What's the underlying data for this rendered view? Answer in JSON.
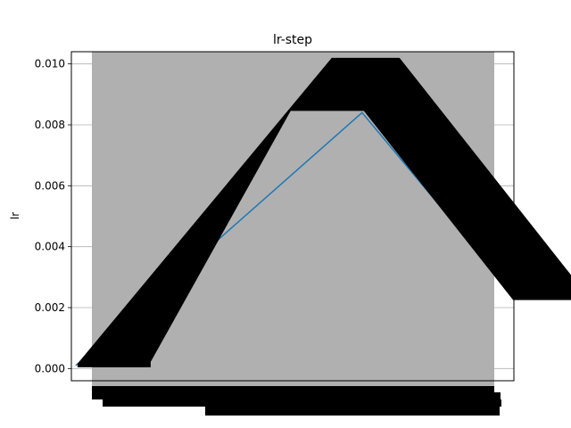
{
  "chart_data": {
    "type": "line",
    "title": "lr-step",
    "xlabel": "",
    "ylabel": "lr",
    "ylim": [
      -0.0004,
      0.0104
    ],
    "xlim": [
      -1,
      101
    ],
    "yticks": [
      0.0,
      0.002,
      0.004,
      0.006,
      0.008,
      0.01
    ],
    "ytick_labels": [
      "0.000",
      "0.002",
      "0.004",
      "0.006",
      "0.008",
      "0.010"
    ],
    "grid": true,
    "series": [
      {
        "name": "",
        "color": "#1f77b4",
        "x": [
          0,
          66,
          100
        ],
        "y": [
          0.0001,
          0.0084,
          0.0026
        ]
      }
    ]
  }
}
